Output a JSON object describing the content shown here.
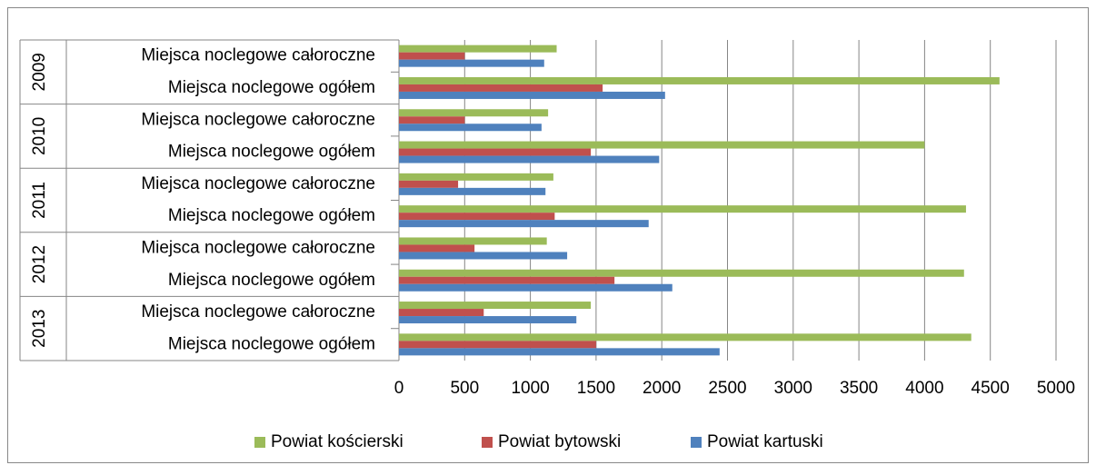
{
  "chart_data": {
    "type": "bar",
    "orientation": "horizontal",
    "categories": [
      "Miejsca noclegowe całoroczne",
      "Miejsca noclegowe ogółem",
      "Miejsca noclegowe całoroczne",
      "Miejsca noclegowe ogółem",
      "Miejsca noclegowe całoroczne",
      "Miejsca noclegowe ogółem",
      "Miejsca noclegowe całoroczne",
      "Miejsca noclegowe ogółem",
      "Miejsca noclegowe całoroczne",
      "Miejsca noclegowe ogółem"
    ],
    "category_groups": [
      "2009",
      "2010",
      "2011",
      "2012",
      "2013"
    ],
    "series": [
      {
        "name": "Powiat kościerski",
        "color": "#9bbb59",
        "values": [
          1200,
          4570,
          1135,
          4000,
          1175,
          4315,
          1125,
          4300,
          1460,
          4355
        ]
      },
      {
        "name": "Powiat bytowski",
        "color": "#c0504d",
        "values": [
          500,
          1550,
          500,
          1460,
          450,
          1185,
          575,
          1640,
          645,
          1500
        ]
      },
      {
        "name": "Powiat kartuski",
        "color": "#4f81bd",
        "values": [
          1105,
          2025,
          1085,
          1980,
          1115,
          1900,
          1280,
          2080,
          1350,
          2440
        ]
      }
    ],
    "xlim": [
      0,
      5000
    ],
    "xticks": [
      0,
      500,
      1000,
      1500,
      2000,
      2500,
      3000,
      3500,
      4000,
      4500,
      5000
    ],
    "grid": true,
    "legend": "bottom"
  }
}
